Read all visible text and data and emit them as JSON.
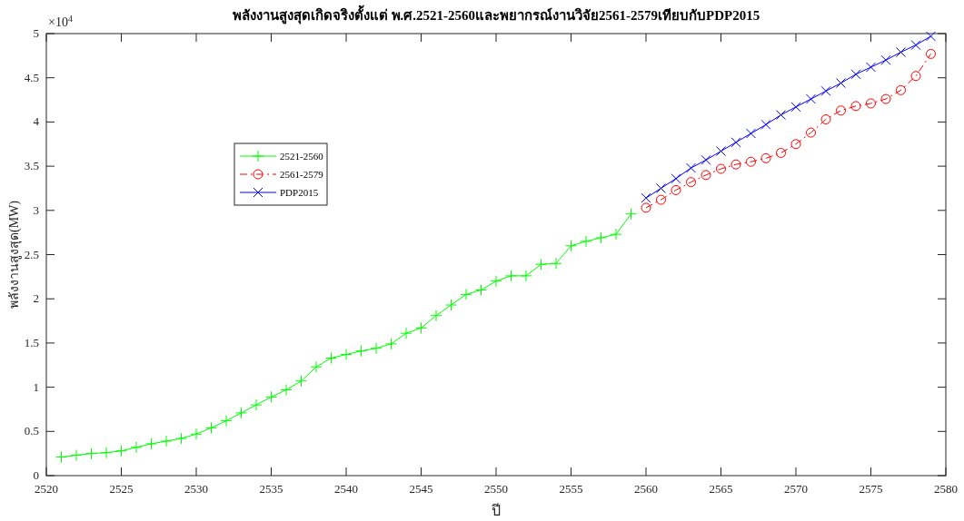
{
  "chart_data": {
    "type": "line",
    "title": "พลังงานสูงสุดเกิดจริงตั้งแต่ พ.ศ.2521-2560และพยากรณ์งานวิจัย2561-2579เทียบกับPDP2015",
    "xlabel": "ปี",
    "ylabel": "พลังงานสูงสุด(MW)",
    "annotations": [
      "×10$^{4}$"
    ],
    "xlim": [
      2520,
      2580
    ],
    "xticks": [
      2520,
      2525,
      2530,
      2535,
      2540,
      2545,
      2550,
      2555,
      2560,
      2565,
      2570,
      2575,
      2580
    ],
    "ylim": [
      0,
      5
    ],
    "yticks": [
      0,
      0.5,
      1,
      1.5,
      2,
      2.5,
      3,
      3.5,
      4,
      4.5,
      5
    ],
    "grid": false,
    "legend": "top left",
    "series": [
      {
        "name": "2521-2560",
        "color": "#00ff00",
        "marker": "plus",
        "line_style": "solid",
        "x": [
          2521,
          2522,
          2523,
          2524,
          2525,
          2526,
          2527,
          2528,
          2529,
          2530,
          2531,
          2532,
          2533,
          2534,
          2535,
          2536,
          2537,
          2538,
          2539,
          2540,
          2541,
          2542,
          2543,
          2544,
          2545,
          2546,
          2547,
          2548,
          2549,
          2550,
          2551,
          2552,
          2553,
          2554,
          2555,
          2556,
          2557,
          2558,
          2559
        ],
        "values": [
          0.21,
          0.23,
          0.25,
          0.26,
          0.28,
          0.32,
          0.36,
          0.39,
          0.42,
          0.47,
          0.54,
          0.62,
          0.71,
          0.8,
          0.89,
          0.97,
          1.07,
          1.23,
          1.33,
          1.37,
          1.41,
          1.44,
          1.49,
          1.61,
          1.67,
          1.81,
          1.93,
          2.05,
          2.1,
          2.2,
          2.26,
          2.26,
          2.39,
          2.4,
          2.6,
          2.65,
          2.69,
          2.73,
          2.96
        ]
      },
      {
        "name": "2561-2579",
        "color": "#ff0000",
        "marker": "circle",
        "line_style": "dashdot",
        "x": [
          2560,
          2561,
          2562,
          2563,
          2564,
          2565,
          2566,
          2567,
          2568,
          2569,
          2570,
          2571,
          2572,
          2573,
          2574,
          2575,
          2576,
          2577,
          2578,
          2579
        ],
        "values": [
          3.03,
          3.12,
          3.23,
          3.32,
          3.4,
          3.47,
          3.52,
          3.55,
          3.59,
          3.65,
          3.75,
          3.88,
          4.03,
          4.13,
          4.18,
          4.21,
          4.26,
          4.36,
          4.52,
          4.77
        ]
      },
      {
        "name": "PDP2015",
        "color": "#0000ff",
        "marker": "cross",
        "line_style": "solid",
        "x": [
          2560,
          2561,
          2562,
          2563,
          2564,
          2565,
          2566,
          2567,
          2568,
          2569,
          2570,
          2571,
          2572,
          2573,
          2574,
          2575,
          2576,
          2577,
          2578,
          2579
        ],
        "values": [
          3.14,
          3.25,
          3.36,
          3.48,
          3.57,
          3.67,
          3.77,
          3.87,
          3.97,
          4.08,
          4.17,
          4.26,
          4.35,
          4.44,
          4.54,
          4.62,
          4.7,
          4.79,
          4.87,
          4.97
        ]
      }
    ]
  }
}
